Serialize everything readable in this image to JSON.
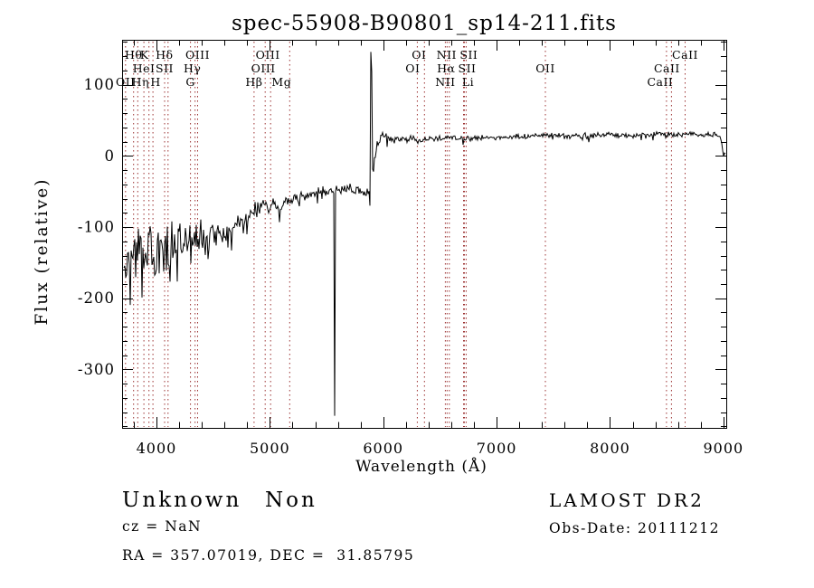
{
  "title": "spec-55908-B90801_sp14-211.fits",
  "footer": {
    "class_label": "Unknown",
    "subclass_label": "Non",
    "cz": "cz = NaN",
    "coords": "RA = 357.07019, DEC =  31.85795",
    "survey": "LAMOST DR2",
    "obs_date": "Obs-Date: 20111212"
  },
  "chart_data": {
    "type": "line",
    "title": "spec-55908-B90801_sp14-211.fits",
    "xlabel": "Wavelength (Å)",
    "ylabel": "Flux (relative)",
    "xlim": [
      3697,
      9025
    ],
    "ylim": [
      -382,
      163
    ],
    "x_ticks": [
      4000,
      5000,
      6000,
      7000,
      8000,
      9000
    ],
    "x_minor_step": 200,
    "y_ticks": [
      100,
      0,
      -100,
      -200,
      -300
    ],
    "y_minor_step": 20,
    "grid": false,
    "legend": null,
    "line_color": "#000000",
    "frame_color": "#000000",
    "marker_line_color": "#9b3030",
    "spectral_lines": [
      {
        "label": "Hθ",
        "wl": 3798,
        "row": 1,
        "dx": 0
      },
      {
        "label": "K",
        "wl": 3934,
        "row": 1,
        "dx": -5
      },
      {
        "label": "Hδ",
        "wl": 4102,
        "row": 1,
        "dx": -4
      },
      {
        "label": "OIII",
        "wl": 4363,
        "row": 1,
        "dx": 0
      },
      {
        "label": "OIII",
        "wl": 5007,
        "row": 1,
        "dx": -3
      },
      {
        "label": "OI",
        "wl": 6363,
        "row": 1,
        "dx": -6
      },
      {
        "label": "NII",
        "wl": 6583,
        "row": 1,
        "dx": -3
      },
      {
        "label": "SII",
        "wl": 6731,
        "row": 1,
        "dx": 3
      },
      {
        "label": "CaII",
        "wl": 8662,
        "row": 1,
        "dx": 0
      },
      {
        "label": "HeI",
        "wl": 3889,
        "row": 2,
        "dx": 0
      },
      {
        "label": "SII",
        "wl": 4072,
        "row": 2,
        "dx": 0
      },
      {
        "label": "Hγ",
        "wl": 4341,
        "row": 2,
        "dx": -3
      },
      {
        "label": "OIII",
        "wl": 4959,
        "row": 2,
        "dx": -2
      },
      {
        "label": "OI",
        "wl": 6300,
        "row": 2,
        "dx": -5
      },
      {
        "label": "Hα",
        "wl": 6563,
        "row": 2,
        "dx": -1
      },
      {
        "label": "SII",
        "wl": 6716,
        "row": 2,
        "dx": 3
      },
      {
        "label": "OII",
        "wl": 7430,
        "row": 2,
        "dx": 0
      },
      {
        "label": "CaII",
        "wl": 8542,
        "row": 2,
        "dx": -5
      },
      {
        "label": "OII",
        "wl": 3727,
        "row": 3,
        "dx": 0
      },
      {
        "label": "Hη",
        "wl": 3835,
        "row": 3,
        "dx": 3
      },
      {
        "label": "H",
        "wl": 3969,
        "row": 3,
        "dx": 3
      },
      {
        "label": "G",
        "wl": 4300,
        "row": 3,
        "dx": 0
      },
      {
        "label": "Hβ",
        "wl": 4861,
        "row": 3,
        "dx": 0
      },
      {
        "label": "Mg",
        "wl": 5175,
        "row": 3,
        "dx": -9
      },
      {
        "label": "NII",
        "wl": 6548,
        "row": 3,
        "dx": 0
      },
      {
        "label": "Li",
        "wl": 6708,
        "row": 3,
        "dx": 5
      },
      {
        "label": "CaII",
        "wl": 8498,
        "row": 3,
        "dx": -7
      }
    ],
    "spectrum": {
      "seed": 3,
      "anchors": [
        [
          3700,
          -135
        ],
        [
          3740,
          -150
        ],
        [
          3800,
          -150
        ],
        [
          3860,
          -140
        ],
        [
          3920,
          -145
        ],
        [
          4000,
          -133
        ],
        [
          4100,
          -128
        ],
        [
          4200,
          -124
        ],
        [
          4300,
          -127
        ],
        [
          4400,
          -118
        ],
        [
          4500,
          -113
        ],
        [
          4600,
          -104
        ],
        [
          4700,
          -98
        ],
        [
          4800,
          -88
        ],
        [
          4900,
          -72
        ],
        [
          5000,
          -68
        ],
        [
          5080,
          -72
        ],
        [
          5150,
          -65
        ],
        [
          5250,
          -58
        ],
        [
          5350,
          -53
        ],
        [
          5450,
          -51
        ],
        [
          5560,
          -49
        ],
        [
          5700,
          -48
        ],
        [
          5800,
          -46
        ],
        [
          5870,
          -52
        ],
        [
          5950,
          18
        ],
        [
          6010,
          30
        ],
        [
          6080,
          22
        ],
        [
          6200,
          23
        ],
        [
          6400,
          24
        ],
        [
          6600,
          25
        ],
        [
          6800,
          25
        ],
        [
          7000,
          26
        ],
        [
          7200,
          26
        ],
        [
          7400,
          30
        ],
        [
          7600,
          28
        ],
        [
          7800,
          28
        ],
        [
          8000,
          29
        ],
        [
          8200,
          29
        ],
        [
          8400,
          30
        ],
        [
          8600,
          30
        ],
        [
          8800,
          30
        ],
        [
          8960,
          29
        ],
        [
          8985,
          20
        ],
        [
          9000,
          3
        ],
        [
          9020,
          2
        ]
      ],
      "noise_amp": [
        [
          3700,
          72
        ],
        [
          3800,
          68
        ],
        [
          3900,
          60
        ],
        [
          4000,
          50
        ],
        [
          4200,
          40
        ],
        [
          4400,
          32
        ],
        [
          4600,
          24
        ],
        [
          4800,
          18
        ],
        [
          5000,
          15
        ],
        [
          5200,
          12
        ],
        [
          5400,
          10
        ],
        [
          5600,
          9
        ],
        [
          5800,
          9
        ],
        [
          5950,
          8
        ],
        [
          6200,
          6
        ],
        [
          6600,
          5
        ],
        [
          7000,
          5
        ],
        [
          8000,
          5
        ],
        [
          9020,
          4
        ]
      ],
      "spikes": [
        {
          "wl": 5575,
          "flux": -365
        },
        {
          "wl": 5883,
          "flux": -70
        },
        {
          "wl": 5890,
          "flux": 146
        },
        {
          "wl": 5898,
          "flux": 118
        }
      ]
    }
  }
}
